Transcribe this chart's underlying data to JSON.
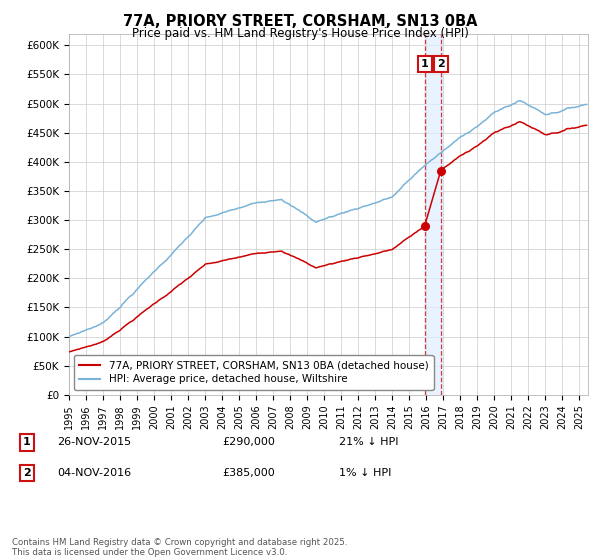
{
  "title_line1": "77A, PRIORY STREET, CORSHAM, SN13 0BA",
  "title_line2": "Price paid vs. HM Land Registry's House Price Index (HPI)",
  "ylabel_ticks": [
    "£0",
    "£50K",
    "£100K",
    "£150K",
    "£200K",
    "£250K",
    "£300K",
    "£350K",
    "£400K",
    "£450K",
    "£500K",
    "£550K",
    "£600K"
  ],
  "ytick_vals": [
    0,
    50000,
    100000,
    150000,
    200000,
    250000,
    300000,
    350000,
    400000,
    450000,
    500000,
    550000,
    600000
  ],
  "ylim": [
    0,
    620000
  ],
  "xlim_start": 1995.0,
  "xlim_end": 2025.5,
  "hpi_color": "#7ab3d8",
  "price_color": "#cc0000",
  "sale1_date": 2015.9,
  "sale1_price": 290000,
  "sale2_date": 2016.85,
  "sale2_price": 385000,
  "legend_label1": "77A, PRIORY STREET, CORSHAM, SN13 0BA (detached house)",
  "legend_label2": "HPI: Average price, detached house, Wiltshire",
  "annotation1_num": "1",
  "annotation1_date": "26-NOV-2015",
  "annotation1_price": "£290,000",
  "annotation1_hpi": "21% ↓ HPI",
  "annotation2_num": "2",
  "annotation2_date": "04-NOV-2016",
  "annotation2_price": "£385,000",
  "annotation2_hpi": "1% ↓ HPI",
  "footer": "Contains HM Land Registry data © Crown copyright and database right 2025.\nThis data is licensed under the Open Government Licence v3.0.",
  "bg_color": "#ffffff",
  "plot_bg_color": "#ffffff",
  "grid_color": "#cccccc",
  "shade_color": "#ddeeff"
}
